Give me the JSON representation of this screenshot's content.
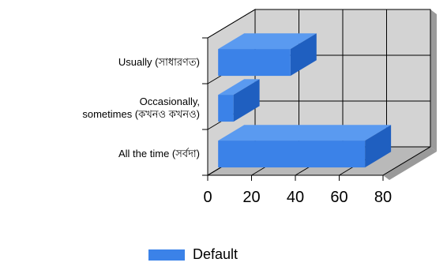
{
  "chart_data": {
    "type": "bar",
    "orientation": "horizontal",
    "style": "3d",
    "categories": [
      "Usually (সাধারণত)",
      "Occasionally, sometimes (কখনও কখনও)",
      "All the time (সর্বদা)"
    ],
    "category_label_lines": [
      [
        "Usually (সাধারণত)"
      ],
      [
        "Occasionally,",
        "sometimes (কখনও কখনও)"
      ],
      [
        "All the time (সর্বদা)"
      ]
    ],
    "series": [
      {
        "name": "Default",
        "values": [
          33,
          7,
          67
        ],
        "color": "#3b82e8"
      }
    ],
    "xlim": [
      0,
      80
    ],
    "xticks": [
      "0",
      "20",
      "40",
      "60",
      "80"
    ],
    "grid": true,
    "legend_position": "bottom",
    "colors": {
      "bar_front": "#3b82e8",
      "bar_top": "#5a9af0",
      "bar_side": "#1f5fc0",
      "wall": "#d3d3d3",
      "floor": "#b9b9b9",
      "grid": "#000000"
    }
  }
}
